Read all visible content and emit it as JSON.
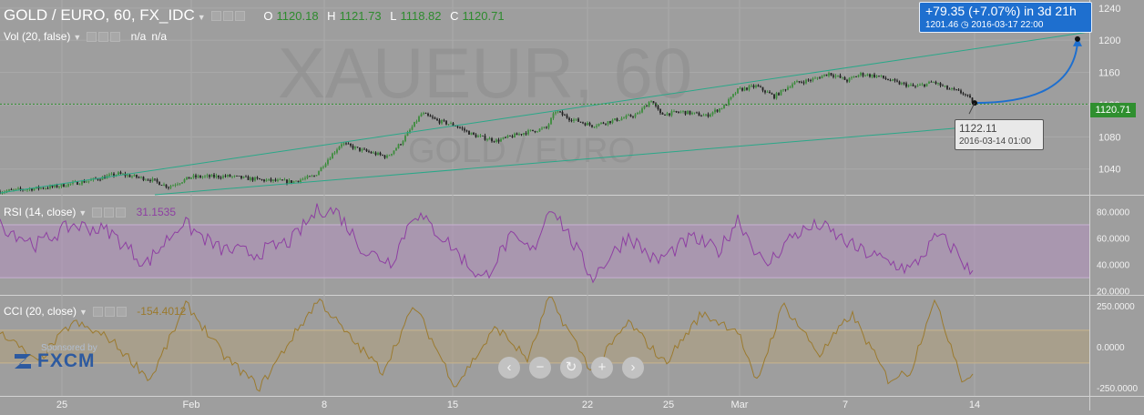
{
  "header": {
    "title": "GOLD / EURO, 60, FX_IDC",
    "ohlc": [
      {
        "key": "O",
        "value": "1120.18"
      },
      {
        "key": "H",
        "value": "1121.73"
      },
      {
        "key": "L",
        "value": "1118.82"
      },
      {
        "key": "C",
        "value": "1120.71"
      }
    ],
    "watermark": "XAUEUR, 60",
    "watermark_sub": "GOLD / EURO"
  },
  "volume": {
    "label": "Vol (20, false)",
    "values": [
      "n/a",
      "n/a"
    ]
  },
  "rsi": {
    "label": "RSI (14, close)",
    "value": "31.1535"
  },
  "cci": {
    "label": "CCI (20, close)",
    "value": "-154.4012"
  },
  "price_tag": "1120.71",
  "projection": {
    "line1": "+79.35 (+7.07%) in 3d 21h",
    "line2": "1201.46 ◷ 2016-03-17 22:00"
  },
  "start_tooltip": {
    "price": "1122.11",
    "date": "2016-03-14 01:00"
  },
  "sponsor": {
    "by": "Sponsored by",
    "brand": "FXCM"
  },
  "nav": {
    "icons": [
      "chevron-left-icon",
      "zoom-out-icon",
      "reset-icon",
      "zoom-in-icon",
      "chevron-right-icon"
    ]
  },
  "colors": {
    "background": "#9e9e9e",
    "candle_up": "#3d8c3d",
    "candle_down": "#222222",
    "channel": "#2aa889",
    "rsi": "#8e3fa2",
    "cci": "#9b7a2e",
    "projection": "#1e6fcf"
  },
  "chart_data": [
    {
      "type": "candlestick",
      "title": "GOLD / EURO, 60, FX_IDC",
      "xlabel": "",
      "ylabel": "",
      "ylim": [
        1008,
        1250
      ],
      "y_ticks": [
        1040,
        1080,
        1120,
        1160,
        1200,
        1240
      ],
      "x_ticks": [
        "25",
        "Feb",
        "8",
        "15",
        "22",
        "25",
        "Mar",
        "7",
        "14"
      ],
      "last_price": 1120.71,
      "close_path": [
        {
          "t": 0,
          "v": 1012
        },
        {
          "t": 20,
          "v": 1014
        },
        {
          "t": 60,
          "v": 1018
        },
        {
          "t": 100,
          "v": 1026
        },
        {
          "t": 130,
          "v": 1034
        },
        {
          "t": 165,
          "v": 1027
        },
        {
          "t": 185,
          "v": 1018
        },
        {
          "t": 210,
          "v": 1030
        },
        {
          "t": 250,
          "v": 1031
        },
        {
          "t": 290,
          "v": 1026
        },
        {
          "t": 320,
          "v": 1024
        },
        {
          "t": 345,
          "v": 1031
        },
        {
          "t": 360,
          "v": 1052
        },
        {
          "t": 375,
          "v": 1072
        },
        {
          "t": 395,
          "v": 1064
        },
        {
          "t": 425,
          "v": 1055
        },
        {
          "t": 440,
          "v": 1072
        },
        {
          "t": 455,
          "v": 1096
        },
        {
          "t": 463,
          "v": 1109
        },
        {
          "t": 480,
          "v": 1100
        },
        {
          "t": 500,
          "v": 1094
        },
        {
          "t": 520,
          "v": 1082
        },
        {
          "t": 545,
          "v": 1075
        },
        {
          "t": 575,
          "v": 1085
        },
        {
          "t": 600,
          "v": 1091
        },
        {
          "t": 610,
          "v": 1112
        },
        {
          "t": 625,
          "v": 1103
        },
        {
          "t": 650,
          "v": 1094
        },
        {
          "t": 680,
          "v": 1102
        },
        {
          "t": 700,
          "v": 1108
        },
        {
          "t": 715,
          "v": 1126
        },
        {
          "t": 725,
          "v": 1108
        },
        {
          "t": 750,
          "v": 1111
        },
        {
          "t": 775,
          "v": 1106
        },
        {
          "t": 795,
          "v": 1118
        },
        {
          "t": 810,
          "v": 1138
        },
        {
          "t": 830,
          "v": 1143
        },
        {
          "t": 850,
          "v": 1130
        },
        {
          "t": 870,
          "v": 1146
        },
        {
          "t": 895,
          "v": 1152
        },
        {
          "t": 910,
          "v": 1159
        },
        {
          "t": 930,
          "v": 1150
        },
        {
          "t": 945,
          "v": 1158
        },
        {
          "t": 965,
          "v": 1155
        },
        {
          "t": 985,
          "v": 1147
        },
        {
          "t": 1005,
          "v": 1142
        },
        {
          "t": 1025,
          "v": 1148
        },
        {
          "t": 1040,
          "v": 1140
        },
        {
          "t": 1058,
          "v": 1134
        },
        {
          "t": 1070,
          "v": 1121
        }
      ],
      "trend_channel": {
        "upper": [
          {
            "x": "23 Jan",
            "y": 1008
          },
          {
            "x": "17 Mar",
            "y": 1210
          }
        ],
        "lower": [
          {
            "x": "28 Jan",
            "y": 1008
          },
          {
            "x": "14 Mar",
            "y": 1100
          }
        ]
      },
      "projection": {
        "from": {
          "x": "2016-03-14 01:00",
          "y": 1122.11
        },
        "to": {
          "x": "2016-03-17 22:00",
          "y": 1201.46
        }
      }
    },
    {
      "type": "line",
      "title": "RSI (14, close)",
      "ylim": [
        17,
        92
      ],
      "y_ticks": [
        "20.0000",
        "40.0000",
        "60.0000",
        "80.0000"
      ],
      "band": [
        30,
        70
      ],
      "last_value": 31.1535,
      "anchors": [
        {
          "t": 0,
          "v": 70
        },
        {
          "t": 40,
          "v": 55
        },
        {
          "t": 80,
          "v": 70
        },
        {
          "t": 120,
          "v": 65
        },
        {
          "t": 160,
          "v": 40
        },
        {
          "t": 200,
          "v": 72
        },
        {
          "t": 240,
          "v": 52
        },
        {
          "t": 280,
          "v": 48
        },
        {
          "t": 320,
          "v": 58
        },
        {
          "t": 350,
          "v": 82
        },
        {
          "t": 370,
          "v": 80
        },
        {
          "t": 400,
          "v": 50
        },
        {
          "t": 430,
          "v": 42
        },
        {
          "t": 455,
          "v": 80
        },
        {
          "t": 490,
          "v": 58
        },
        {
          "t": 530,
          "v": 28
        },
        {
          "t": 560,
          "v": 60
        },
        {
          "t": 585,
          "v": 50
        },
        {
          "t": 605,
          "v": 86
        },
        {
          "t": 650,
          "v": 30
        },
        {
          "t": 690,
          "v": 62
        },
        {
          "t": 720,
          "v": 42
        },
        {
          "t": 760,
          "v": 60
        },
        {
          "t": 790,
          "v": 50
        },
        {
          "t": 810,
          "v": 75
        },
        {
          "t": 840,
          "v": 38
        },
        {
          "t": 870,
          "v": 62
        },
        {
          "t": 900,
          "v": 70
        },
        {
          "t": 940,
          "v": 52
        },
        {
          "t": 975,
          "v": 42
        },
        {
          "t": 1000,
          "v": 36
        },
        {
          "t": 1030,
          "v": 62
        },
        {
          "t": 1050,
          "v": 50
        },
        {
          "t": 1068,
          "v": 31
        }
      ]
    },
    {
      "type": "line",
      "title": "CCI (20, close)",
      "ylim": [
        -300,
        310
      ],
      "y_ticks": [
        "-250.0000",
        "0.0000",
        "250.0000"
      ],
      "band": [
        -100,
        100
      ],
      "last_value": -154.4012,
      "anchors": [
        {
          "t": 0,
          "v": 100
        },
        {
          "t": 40,
          "v": -100
        },
        {
          "t": 80,
          "v": 150
        },
        {
          "t": 120,
          "v": 50
        },
        {
          "t": 165,
          "v": -200
        },
        {
          "t": 205,
          "v": 260
        },
        {
          "t": 245,
          "v": -50
        },
        {
          "t": 285,
          "v": -250
        },
        {
          "t": 320,
          "v": 50
        },
        {
          "t": 350,
          "v": 290
        },
        {
          "t": 380,
          "v": 80
        },
        {
          "t": 420,
          "v": -150
        },
        {
          "t": 455,
          "v": 250
        },
        {
          "t": 500,
          "v": -240
        },
        {
          "t": 545,
          "v": 120
        },
        {
          "t": 580,
          "v": -80
        },
        {
          "t": 603,
          "v": 300
        },
        {
          "t": 650,
          "v": -150
        },
        {
          "t": 690,
          "v": 150
        },
        {
          "t": 730,
          "v": -100
        },
        {
          "t": 770,
          "v": 200
        },
        {
          "t": 810,
          "v": 100
        },
        {
          "t": 830,
          "v": -230
        },
        {
          "t": 860,
          "v": 260
        },
        {
          "t": 900,
          "v": -50
        },
        {
          "t": 935,
          "v": 200
        },
        {
          "t": 975,
          "v": -200
        },
        {
          "t": 1000,
          "v": -150
        },
        {
          "t": 1025,
          "v": 290
        },
        {
          "t": 1045,
          "v": 0
        },
        {
          "t": 1058,
          "v": -220
        },
        {
          "t": 1068,
          "v": -154
        }
      ]
    }
  ]
}
